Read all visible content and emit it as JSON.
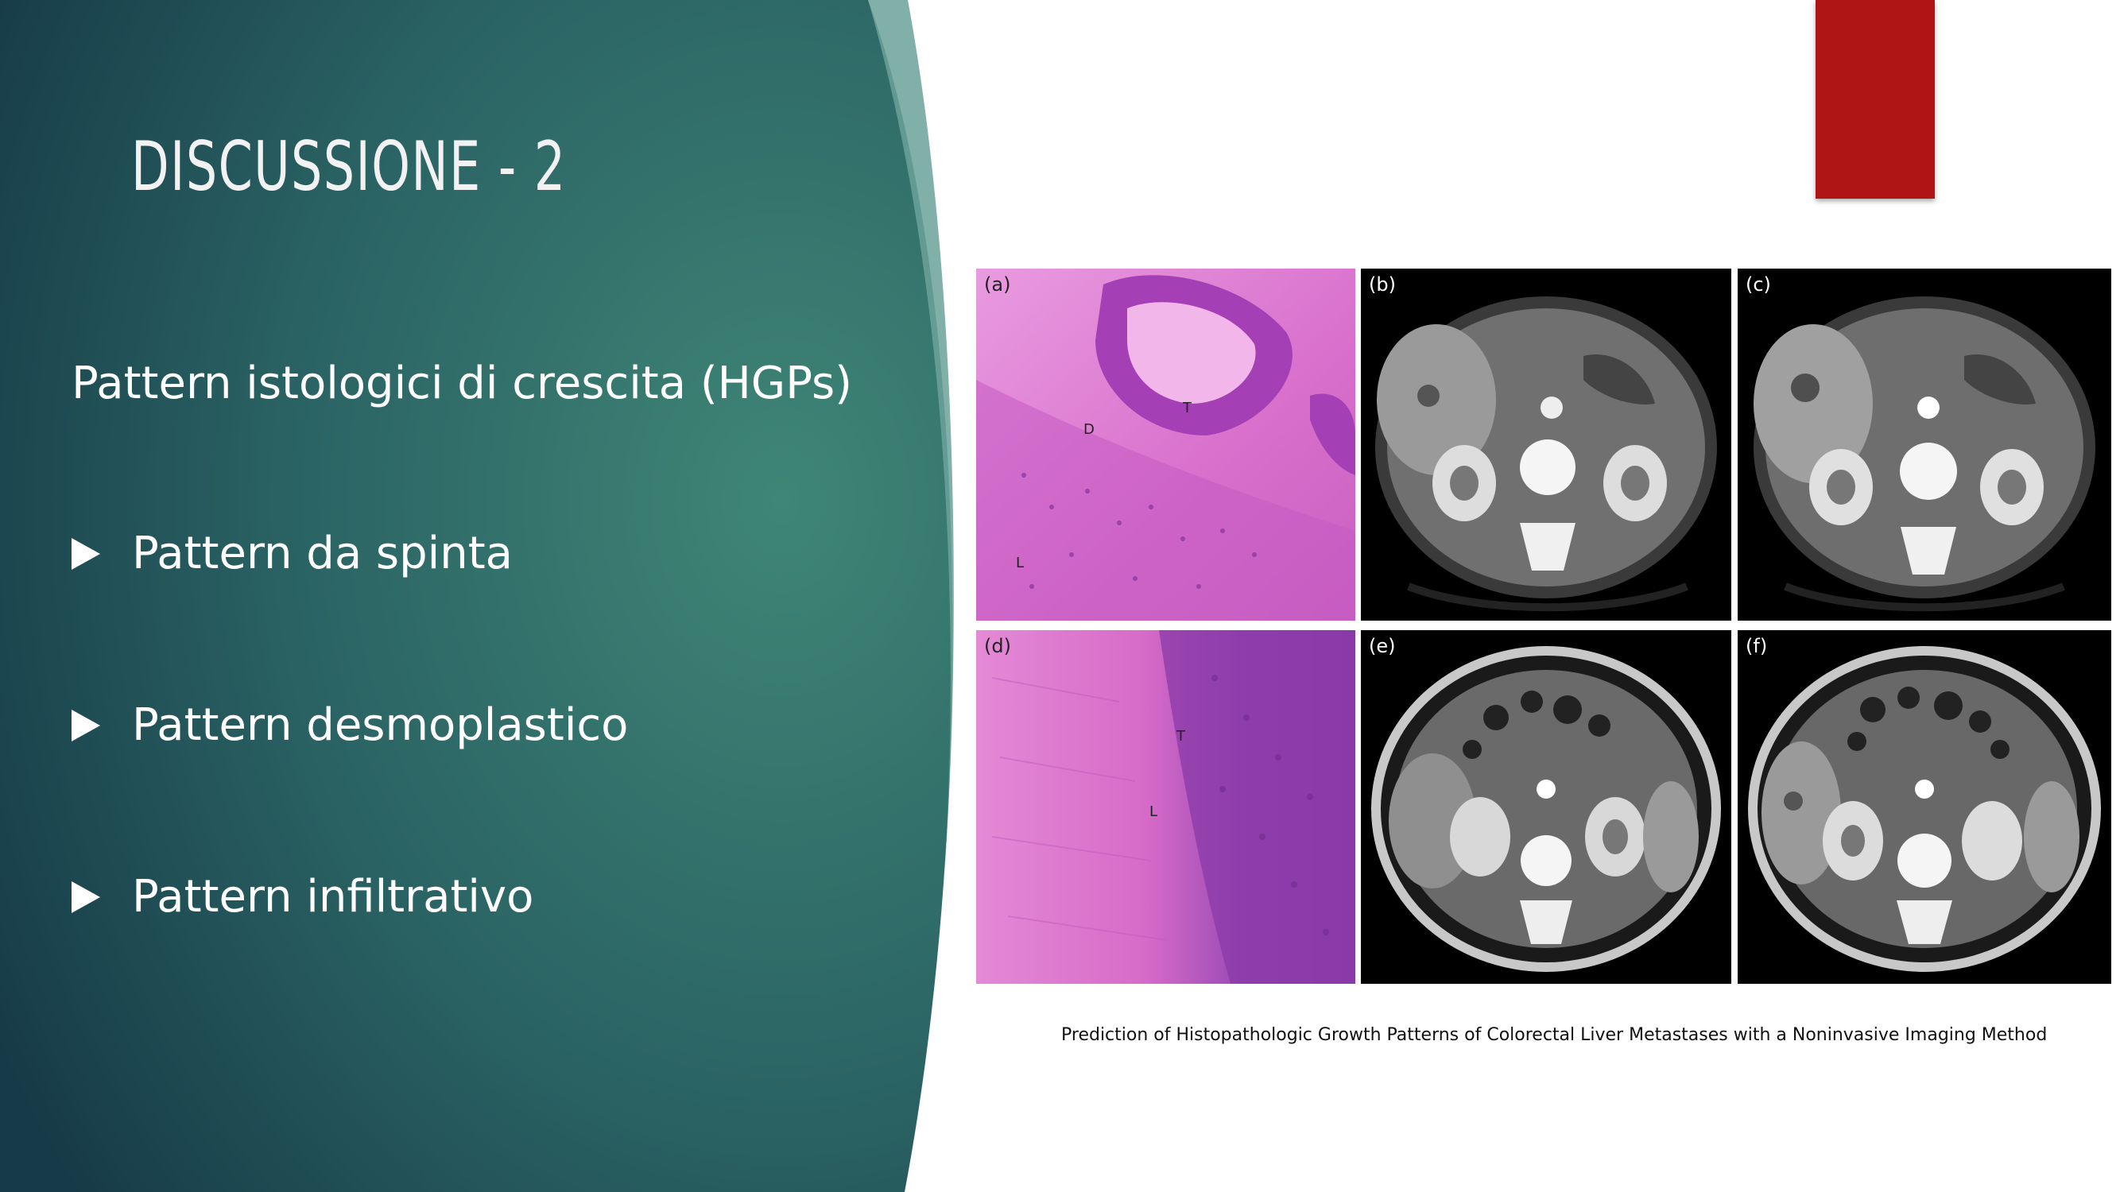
{
  "slide": {
    "title": "DISCUSSIONE - 2",
    "subtitle": "Pattern istologici di crescita (HGPs)",
    "bullets": [
      "Pattern da spinta",
      "Pattern desmoplastico",
      "Pattern infiltrativo"
    ],
    "caption": "Prediction of Histopathologic Growth Patterns of Colorectal Liver Metastases with a Noninvasive Imaging Method"
  },
  "figure": {
    "panels": [
      {
        "label": "(a)",
        "kind": "histology"
      },
      {
        "label": "(b)",
        "kind": "ct-scan"
      },
      {
        "label": "(c)",
        "kind": "ct-scan"
      },
      {
        "label": "(d)",
        "kind": "histology"
      },
      {
        "label": "(e)",
        "kind": "ct-scan"
      },
      {
        "label": "(f)",
        "kind": "ct-scan"
      }
    ],
    "annotations": {
      "a_tumor": "T",
      "a_desmoplastic": "D",
      "a_liver": "L",
      "d_tumor": "T",
      "d_liver": "L"
    }
  },
  "colors": {
    "panel_dark": "#1c4450",
    "panel_light": "#3d7f73",
    "accent_red": "#b01515",
    "histology_pink": "#e07ad0",
    "histology_purple": "#8a3aa8"
  }
}
